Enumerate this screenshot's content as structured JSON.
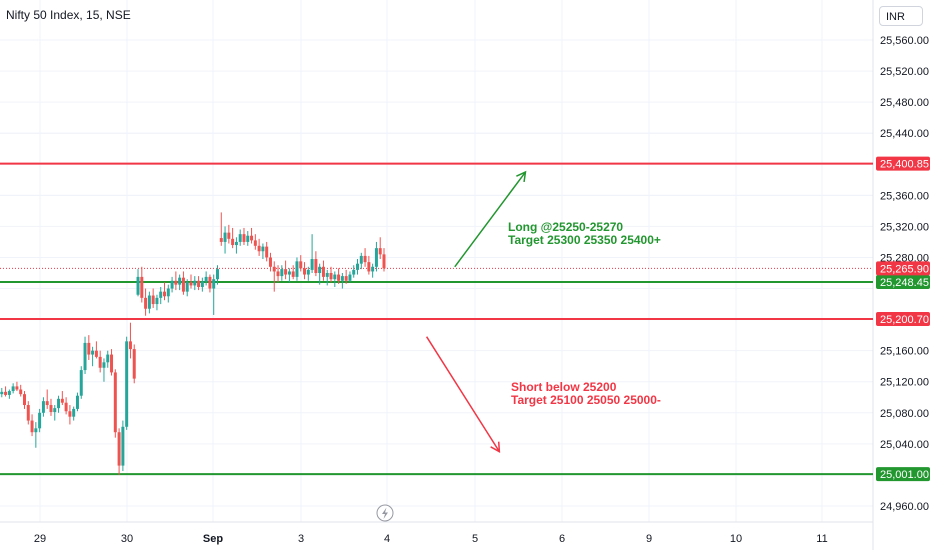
{
  "symbol_title": "Nifty 50 Index, 15, NSE",
  "currency": "INR",
  "lightning_icon": "lightning-icon",
  "colors": {
    "up": "#26a69a",
    "down": "#ef5350",
    "resistance": "#f23645",
    "support": "#22962f",
    "grid": "#f0f3fa",
    "text": "#131722"
  },
  "chart_data": {
    "type": "candlestick",
    "ylim": [
      24945,
      25590
    ],
    "y_ticks": [
      "25,560.00",
      "25,520.00",
      "25,480.00",
      "25,440.00",
      "25,360.00",
      "25,320.00",
      "25,280.00",
      "25,160.00",
      "25,120.00",
      "25,080.00",
      "25,040.00",
      "24,960.00"
    ],
    "y_tick_values": [
      25560,
      25520,
      25480,
      25440,
      25360,
      25320,
      25280,
      25160,
      25120,
      25080,
      25040,
      24960
    ],
    "x_labels": [
      "29",
      "30",
      "Sep",
      "3",
      "4",
      "5",
      "6",
      "9",
      "10",
      "11"
    ],
    "x_label_index": [
      0,
      1,
      2,
      3,
      4,
      5,
      6,
      7,
      8,
      9
    ],
    "price_levels": [
      {
        "value": 25400.85,
        "label": "25,400.85",
        "color": "#f23645",
        "width": 2
      },
      {
        "value": 25248.45,
        "label": "25,248.45",
        "color": "#22962f",
        "width": 2
      },
      {
        "value": 25200.7,
        "label": "25,200.70",
        "color": "#f23645",
        "width": 2
      },
      {
        "value": 25001.0,
        "label": "25,001.00",
        "color": "#22962f",
        "width": 2
      }
    ],
    "last_price": {
      "value": 25265.9,
      "label": "25,265.90"
    },
    "annotations": [
      {
        "lines": [
          "Long @25250-25270",
          "Target 25300 25350 25400+"
        ],
        "color": "#22962f"
      },
      {
        "lines": [
          "Short below 25200",
          "Target 25100 25050 25000-"
        ],
        "color": "#f23645"
      }
    ],
    "arrows": [
      {
        "from": [
          4.77,
          25268
        ],
        "to": [
          5.58,
          25390
        ],
        "color": "#22962f"
      },
      {
        "from": [
          4.45,
          25178
        ],
        "to": [
          5.28,
          25030
        ],
        "color": "#f23645"
      }
    ],
    "candles": [
      [
        25101,
        25108,
        25097,
        25104
      ],
      [
        25104,
        25112,
        25100,
        25107
      ],
      [
        25107,
        25114,
        25101,
        25103
      ],
      [
        25103,
        25110,
        25098,
        25108
      ],
      [
        25108,
        25118,
        25105,
        25114
      ],
      [
        25114,
        25120,
        25108,
        25110
      ],
      [
        25110,
        25116,
        25101,
        25104
      ],
      [
        25104,
        25108,
        25085,
        25090
      ],
      [
        25090,
        25095,
        25065,
        25070
      ],
      [
        25070,
        25078,
        25050,
        25055
      ],
      [
        25055,
        25068,
        25035,
        25060
      ],
      [
        25060,
        25085,
        25055,
        25080
      ],
      [
        25080,
        25100,
        25075,
        25095
      ],
      [
        25095,
        25110,
        25085,
        25090
      ],
      [
        25090,
        25098,
        25076,
        25081
      ],
      [
        25081,
        25090,
        25070,
        25086
      ],
      [
        25086,
        25102,
        25080,
        25098
      ],
      [
        25098,
        25108,
        25090,
        25093
      ],
      [
        25093,
        25100,
        25078,
        25082
      ],
      [
        25082,
        25090,
        25065,
        25075
      ],
      [
        25075,
        25088,
        25070,
        25085
      ],
      [
        25085,
        25106,
        25082,
        25102
      ],
      [
        25102,
        25140,
        25098,
        25135
      ],
      [
        25135,
        25178,
        25130,
        25170
      ],
      [
        25170,
        25180,
        25148,
        25155
      ],
      [
        25155,
        25165,
        25140,
        25160
      ],
      [
        25160,
        25172,
        25150,
        25152
      ],
      [
        25152,
        25160,
        25132,
        25138
      ],
      [
        25138,
        25150,
        25120,
        25145
      ],
      [
        25145,
        25160,
        25138,
        25155
      ],
      [
        25155,
        25162,
        25128,
        25132
      ],
      [
        25132,
        25136,
        25048,
        25055
      ],
      [
        25055,
        25060,
        25000,
        25012
      ],
      [
        25012,
        25070,
        25005,
        25062
      ],
      [
        25062,
        25178,
        25058,
        25172
      ],
      [
        25172,
        25196,
        25150,
        25162
      ],
      [
        25162,
        25168,
        25118,
        25124
      ],
      [
        25232,
        25265,
        25230,
        25255
      ],
      [
        25255,
        25268,
        25222,
        25228
      ],
      [
        25228,
        25240,
        25205,
        25214
      ],
      [
        25214,
        25236,
        25208,
        25231
      ],
      [
        25231,
        25240,
        25215,
        25220
      ],
      [
        25220,
        25232,
        25212,
        25228
      ],
      [
        25228,
        25242,
        25220,
        25236
      ],
      [
        25236,
        25248,
        25225,
        25230
      ],
      [
        25230,
        25245,
        25222,
        25240
      ],
      [
        25240,
        25255,
        25235,
        25250
      ],
      [
        25250,
        25262,
        25238,
        25245
      ],
      [
        25245,
        25258,
        25238,
        25254
      ],
      [
        25254,
        25262,
        25232,
        25236
      ],
      [
        25236,
        25252,
        25230,
        25248
      ],
      [
        25248,
        25258,
        25240,
        25244
      ],
      [
        25244,
        25256,
        25238,
        25250
      ],
      [
        25250,
        25256,
        25238,
        25242
      ],
      [
        25242,
        25254,
        25236,
        25249
      ],
      [
        25249,
        25262,
        25244,
        25255
      ],
      [
        25255,
        25258,
        25235,
        25240
      ],
      [
        25240,
        25258,
        25206,
        25252
      ],
      [
        25252,
        25270,
        25245,
        25265
      ],
      [
        25305,
        25338,
        25295,
        25300
      ],
      [
        25300,
        25320,
        25285,
        25312
      ],
      [
        25312,
        25322,
        25298,
        25304
      ],
      [
        25304,
        25318,
        25292,
        25296
      ],
      [
        25296,
        25306,
        25285,
        25300
      ],
      [
        25300,
        25316,
        25295,
        25310
      ],
      [
        25310,
        25318,
        25296,
        25300
      ],
      [
        25300,
        25314,
        25295,
        25308
      ],
      [
        25308,
        25318,
        25298,
        25302
      ],
      [
        25302,
        25310,
        25290,
        25295
      ],
      [
        25295,
        25304,
        25282,
        25288
      ],
      [
        25288,
        25298,
        25278,
        25294
      ],
      [
        25294,
        25300,
        25275,
        25280
      ],
      [
        25280,
        25286,
        25262,
        25268
      ],
      [
        25268,
        25275,
        25236,
        25262
      ],
      [
        25262,
        25270,
        25248,
        25256
      ],
      [
        25256,
        25270,
        25250,
        25265
      ],
      [
        25265,
        25276,
        25252,
        25258
      ],
      [
        25258,
        25266,
        25248,
        25262
      ],
      [
        25262,
        25270,
        25252,
        25255
      ],
      [
        25255,
        25280,
        25250,
        25275
      ],
      [
        25275,
        25283,
        25262,
        25266
      ],
      [
        25266,
        25274,
        25252,
        25258
      ],
      [
        25258,
        25268,
        25250,
        25264
      ],
      [
        25264,
        25310,
        25260,
        25278
      ],
      [
        25278,
        25288,
        25256,
        25260
      ],
      [
        25260,
        25272,
        25245,
        25268
      ],
      [
        25268,
        25276,
        25250,
        25255
      ],
      [
        25255,
        25264,
        25244,
        25260
      ],
      [
        25260,
        25268,
        25248,
        25252
      ],
      [
        25252,
        25262,
        25242,
        25258
      ],
      [
        25258,
        25266,
        25246,
        25250
      ],
      [
        25250,
        25260,
        25240,
        25256
      ],
      [
        25256,
        25264,
        25246,
        25250
      ],
      [
        25250,
        25262,
        25248,
        25258
      ],
      [
        25258,
        25270,
        25254,
        25264
      ],
      [
        25264,
        25278,
        25258,
        25272
      ],
      [
        25272,
        25286,
        25265,
        25282
      ],
      [
        25282,
        25292,
        25268,
        25274
      ],
      [
        25274,
        25282,
        25258,
        25262
      ],
      [
        25262,
        25272,
        25254,
        25268
      ],
      [
        25268,
        25300,
        25262,
        25292
      ],
      [
        25292,
        25306,
        25278,
        25284
      ],
      [
        25284,
        25292,
        25262,
        25266
      ]
    ]
  }
}
